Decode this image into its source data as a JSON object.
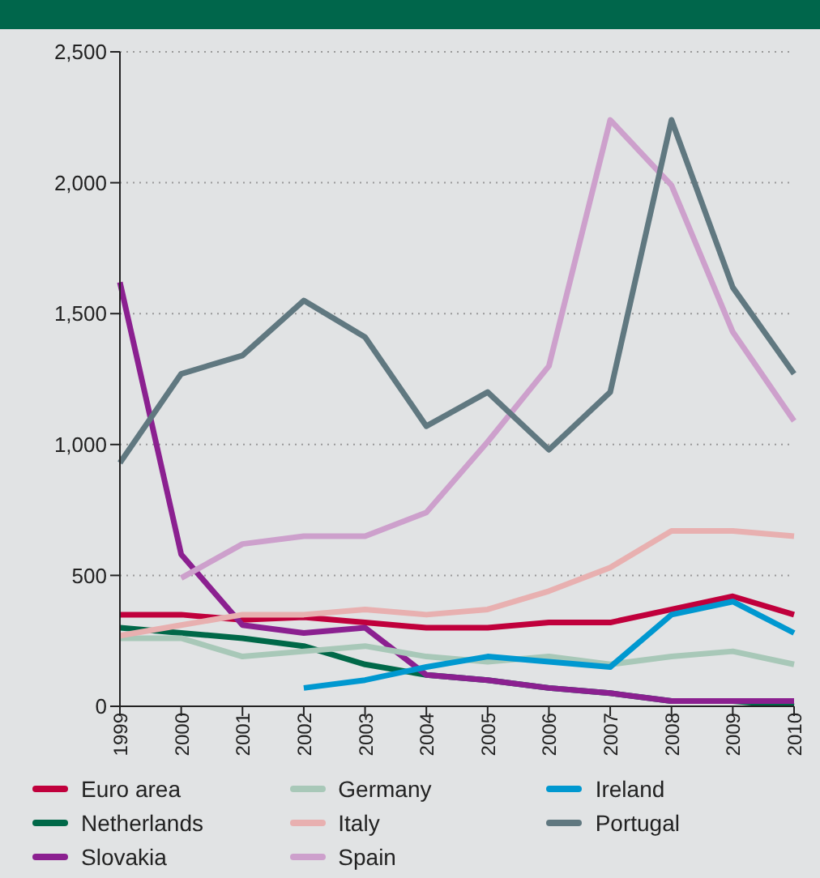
{
  "chart_data": {
    "type": "line",
    "categories": [
      "1999",
      "2000",
      "2001",
      "2002",
      "2003",
      "2004",
      "2005",
      "2006",
      "2007",
      "2008",
      "2009",
      "2010"
    ],
    "series": [
      {
        "name": "Euro area",
        "color": "#c0003c",
        "values": [
          350,
          350,
          330,
          340,
          320,
          300,
          300,
          320,
          320,
          370,
          420,
          350
        ]
      },
      {
        "name": "Netherlands",
        "color": "#006848",
        "values": [
          300,
          280,
          260,
          230,
          160,
          120,
          100,
          70,
          50,
          20,
          20,
          0
        ]
      },
      {
        "name": "Slovakia",
        "color": "#8b2090",
        "values": [
          1620,
          580,
          310,
          280,
          300,
          120,
          100,
          70,
          50,
          20,
          20,
          20
        ]
      },
      {
        "name": "Germany",
        "color": "#a8c8b8",
        "values": [
          260,
          260,
          190,
          210,
          230,
          190,
          170,
          190,
          160,
          190,
          210,
          160
        ]
      },
      {
        "name": "Italy",
        "color": "#e8b0b0",
        "values": [
          270,
          310,
          350,
          350,
          370,
          350,
          370,
          440,
          530,
          670,
          670,
          650
        ]
      },
      {
        "name": "Spain",
        "color": "#cda0cc",
        "values": [
          null,
          490,
          620,
          650,
          650,
          740,
          1010,
          1300,
          2240,
          1990,
          1430,
          1090
        ]
      },
      {
        "name": "Ireland",
        "color": "#0098d0",
        "values": [
          null,
          null,
          null,
          70,
          100,
          150,
          190,
          170,
          150,
          350,
          400,
          280
        ]
      },
      {
        "name": "Portugal",
        "color": "#607880",
        "values": [
          930,
          1270,
          1340,
          1550,
          1410,
          1070,
          1200,
          980,
          1200,
          2240,
          1600,
          1270
        ]
      }
    ],
    "ylim": [
      0,
      2500
    ],
    "yticks": [
      0,
      500,
      {
        "value": 1000,
        "label": "1,000"
      },
      {
        "value": 1500,
        "label": "1,500"
      },
      {
        "value": 2000,
        "label": "2,000"
      },
      {
        "value": 2500,
        "label": "2,500"
      }
    ],
    "grid": "y",
    "legend": "bottom"
  }
}
